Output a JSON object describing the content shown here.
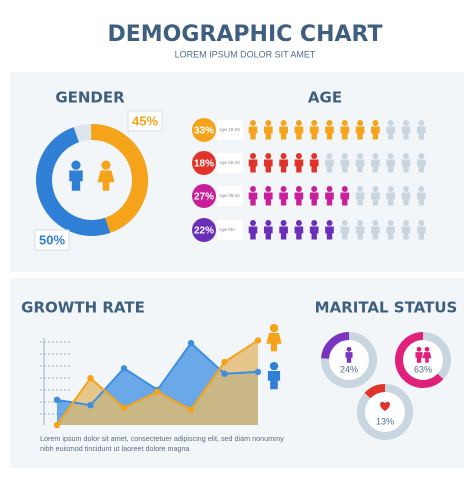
{
  "header": {
    "title": "DEMOGRAPHIC CHART",
    "subtitle": "LOREM IPSUM DOLOR SIT AMET"
  },
  "chart_data": [
    {
      "type": "donut",
      "title": "GENDER",
      "values": [
        45,
        50
      ],
      "value_labels": [
        "45%",
        "50%"
      ],
      "colors": [
        "#f5a31a",
        "#2f7fd6"
      ],
      "total": 100
    },
    {
      "type": "pictogram",
      "title": "AGE",
      "categories": [
        "Age 18-24",
        "Age 25-34",
        "Age 35-44",
        "Age 55+"
      ],
      "values": [
        33,
        18,
        27,
        22
      ],
      "value_labels": [
        "33%",
        "18%",
        "27%",
        "22%"
      ],
      "colors": [
        "#f5a31a",
        "#e0342a",
        "#c8209a",
        "#6a2fb8"
      ],
      "xlim": [
        0,
        44
      ],
      "icons": 12
    },
    {
      "type": "area",
      "title": "GROWTH RATE",
      "caption": [
        "Lorem ipsum dolor sit amet, consectetuer adipiscing elit, sed diam nonummy",
        "nibh euismod tincidunt ut laoreet dolore magna"
      ],
      "ylim": [
        0,
        100
      ],
      "series": [
        {
          "name": null,
          "color": "#3d8ee0",
          "values": [
            28,
            22,
            63,
            39,
            91,
            57,
            59
          ]
        },
        {
          "name": null,
          "color": "#f5a31a",
          "values": [
            0,
            52,
            19,
            37,
            17,
            70,
            94
          ]
        }
      ]
    },
    {
      "type": "donuts",
      "title": "MARITAL STATUS",
      "values": [
        24,
        63,
        13
      ],
      "value_labels": [
        "24%",
        "63%",
        "13%"
      ],
      "colors": [
        "#7a35c0",
        "#e0207a",
        "#e0342a"
      ],
      "total": 100
    }
  ]
}
